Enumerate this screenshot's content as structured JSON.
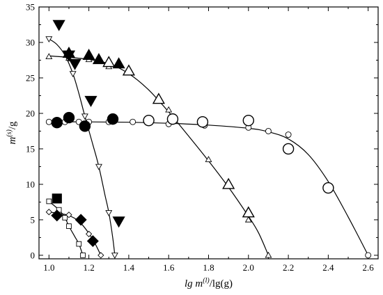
{
  "chart_data": {
    "type": "scatter",
    "title": "",
    "xlabel": {
      "italic": "lg m",
      "sup": "(l)",
      "rest": "/lg(g)"
    },
    "ylabel": {
      "italic": "m",
      "sup": "(s)",
      "rest": "/g"
    },
    "xlim": [
      0.95,
      2.65
    ],
    "ylim": [
      -0.5,
      35
    ],
    "xticks": [
      "1.0",
      "1.2",
      "1.4",
      "1.6",
      "1.8",
      "2.0",
      "2.2",
      "2.4",
      "2.6"
    ],
    "yticks": [
      "0",
      "5",
      "10",
      "15",
      "20",
      "25",
      "30",
      "35"
    ],
    "grid": false,
    "legend": "none",
    "series": [
      {
        "marker": "triangle-up",
        "filled": false,
        "size": "small",
        "points": [
          [
            1.0,
            28.0
          ],
          [
            1.1,
            27.8
          ],
          [
            1.2,
            27.6
          ],
          [
            1.3,
            26.6
          ],
          [
            1.6,
            20.5
          ],
          [
            1.8,
            13.5
          ],
          [
            2.0,
            5.0
          ],
          [
            2.1,
            0.0
          ]
        ],
        "curve": [
          [
            1.0,
            28.1
          ],
          [
            1.1,
            27.9
          ],
          [
            1.2,
            27.6
          ],
          [
            1.3,
            27.0
          ],
          [
            1.4,
            25.6
          ],
          [
            1.5,
            23.3
          ],
          [
            1.6,
            20.2
          ],
          [
            1.7,
            16.8
          ],
          [
            1.8,
            13.3
          ],
          [
            1.9,
            9.6
          ],
          [
            2.0,
            5.5
          ],
          [
            2.05,
            3.2
          ],
          [
            2.1,
            0.0
          ]
        ]
      },
      {
        "marker": "triangle-up",
        "filled": false,
        "size": "large",
        "points": [
          [
            1.3,
            27.2
          ],
          [
            1.4,
            26.0
          ],
          [
            1.55,
            22.0
          ],
          [
            1.9,
            10.0
          ],
          [
            2.0,
            6.0
          ]
        ]
      },
      {
        "marker": "triangle-up",
        "filled": true,
        "size": "large",
        "points": [
          [
            1.1,
            28.5
          ],
          [
            1.2,
            28.2
          ],
          [
            1.25,
            27.6
          ],
          [
            1.35,
            27.0
          ]
        ]
      },
      {
        "marker": "triangle-down",
        "filled": false,
        "size": "small",
        "points": [
          [
            1.0,
            30.5
          ],
          [
            1.12,
            25.6
          ],
          [
            1.18,
            19.6
          ],
          [
            1.25,
            12.5
          ],
          [
            1.3,
            6.0
          ],
          [
            1.33,
            0.0
          ]
        ],
        "curve": [
          [
            1.0,
            30.5
          ],
          [
            1.04,
            29.7
          ],
          [
            1.08,
            28.2
          ],
          [
            1.12,
            25.6
          ],
          [
            1.15,
            22.8
          ],
          [
            1.18,
            19.6
          ],
          [
            1.22,
            15.6
          ],
          [
            1.25,
            12.5
          ],
          [
            1.28,
            8.6
          ],
          [
            1.3,
            6.0
          ],
          [
            1.32,
            2.4
          ],
          [
            1.33,
            0.0
          ]
        ]
      },
      {
        "marker": "triangle-down",
        "filled": true,
        "size": "large",
        "points": [
          [
            1.05,
            32.5
          ],
          [
            1.1,
            28.2
          ],
          [
            1.13,
            27.0
          ],
          [
            1.21,
            21.8
          ],
          [
            1.35,
            4.8
          ]
        ]
      },
      {
        "marker": "circle",
        "filled": false,
        "size": "small",
        "points": [
          [
            1.0,
            18.8
          ],
          [
            1.08,
            18.8
          ],
          [
            1.15,
            18.8
          ],
          [
            1.2,
            18.8
          ],
          [
            1.3,
            18.8
          ],
          [
            1.42,
            18.8
          ],
          [
            1.6,
            18.5
          ],
          [
            1.78,
            18.3
          ],
          [
            2.0,
            18.0
          ],
          [
            2.1,
            17.5
          ],
          [
            2.2,
            17.0
          ],
          [
            2.6,
            0.0
          ]
        ],
        "curve": [
          [
            1.0,
            18.8
          ],
          [
            1.2,
            18.8
          ],
          [
            1.4,
            18.75
          ],
          [
            1.6,
            18.6
          ],
          [
            1.8,
            18.35
          ],
          [
            2.0,
            17.9
          ],
          [
            2.1,
            17.4
          ],
          [
            2.2,
            16.4
          ],
          [
            2.3,
            14.2
          ],
          [
            2.4,
            10.4
          ],
          [
            2.5,
            5.4
          ],
          [
            2.6,
            0.0
          ]
        ]
      },
      {
        "marker": "circle",
        "filled": false,
        "size": "large",
        "points": [
          [
            1.5,
            19.0
          ],
          [
            1.62,
            19.2
          ],
          [
            1.77,
            18.8
          ],
          [
            2.0,
            19.0
          ],
          [
            2.2,
            15.0
          ],
          [
            2.4,
            9.5
          ]
        ]
      },
      {
        "marker": "circle",
        "filled": true,
        "size": "large",
        "points": [
          [
            1.04,
            18.7
          ],
          [
            1.1,
            19.4
          ],
          [
            1.18,
            18.2
          ],
          [
            1.32,
            19.2
          ]
        ]
      },
      {
        "marker": "square",
        "filled": false,
        "size": "small",
        "points": [
          [
            1.0,
            7.6
          ],
          [
            1.05,
            6.4
          ],
          [
            1.08,
            5.3
          ],
          [
            1.1,
            4.1
          ],
          [
            1.15,
            1.6
          ],
          [
            1.17,
            0.0
          ]
        ],
        "curve": [
          [
            1.0,
            7.6
          ],
          [
            1.05,
            6.4
          ],
          [
            1.08,
            5.3
          ],
          [
            1.1,
            4.1
          ],
          [
            1.13,
            2.6
          ],
          [
            1.15,
            1.6
          ],
          [
            1.17,
            0.0
          ]
        ]
      },
      {
        "marker": "square",
        "filled": true,
        "size": "large",
        "points": [
          [
            1.04,
            8.0
          ]
        ]
      },
      {
        "marker": "diamond",
        "filled": false,
        "size": "small",
        "points": [
          [
            1.0,
            6.1
          ],
          [
            1.1,
            5.7
          ],
          [
            1.15,
            5.0
          ],
          [
            1.2,
            3.0
          ],
          [
            1.22,
            2.0
          ],
          [
            1.26,
            0.0
          ]
        ],
        "curve": [
          [
            1.0,
            6.1
          ],
          [
            1.05,
            5.9
          ],
          [
            1.1,
            5.6
          ],
          [
            1.15,
            4.8
          ],
          [
            1.2,
            3.1
          ],
          [
            1.23,
            1.7
          ],
          [
            1.26,
            0.0
          ]
        ]
      },
      {
        "marker": "diamond",
        "filled": true,
        "size": "large",
        "points": [
          [
            1.04,
            5.6
          ],
          [
            1.16,
            5.0
          ],
          [
            1.22,
            2.0
          ]
        ]
      }
    ]
  }
}
